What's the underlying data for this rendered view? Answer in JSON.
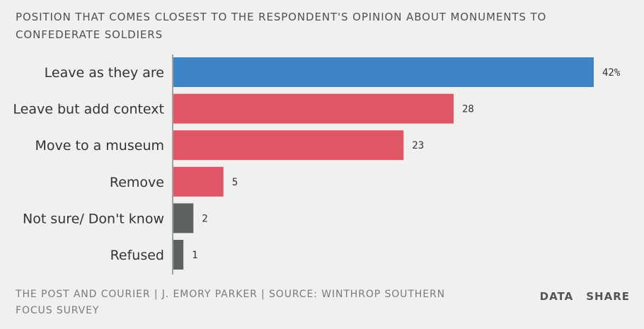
{
  "chart_data": {
    "type": "bar",
    "orientation": "horizontal",
    "title": "POSITION THAT COMES CLOSEST TO THE RESPONDENT'S OPINION ABOUT MONUMENTS TO CONFEDERATE SOLDIERS",
    "categories": [
      "Leave as they are",
      "Leave but add context",
      "Move to a museum",
      "Remove",
      "Not sure/ Don't know",
      "Refused"
    ],
    "values": [
      42,
      28,
      23,
      5,
      2,
      1
    ],
    "value_labels": [
      "42%",
      "28",
      "23",
      "5",
      "2",
      "1"
    ],
    "colors": [
      "#3d85c6",
      "#df5766",
      "#df5766",
      "#df5766",
      "#5f6360",
      "#5f6360"
    ],
    "unit": "%",
    "xlim": [
      0,
      42
    ],
    "grid": false,
    "legend": "none"
  },
  "footer": {
    "credit": "THE POST AND COURIER | J. EMORY PARKER | SOURCE: WINTHROP SOUTHERN FOCUS SURVEY",
    "data_label": "DATA",
    "share_label": "SHARE"
  }
}
